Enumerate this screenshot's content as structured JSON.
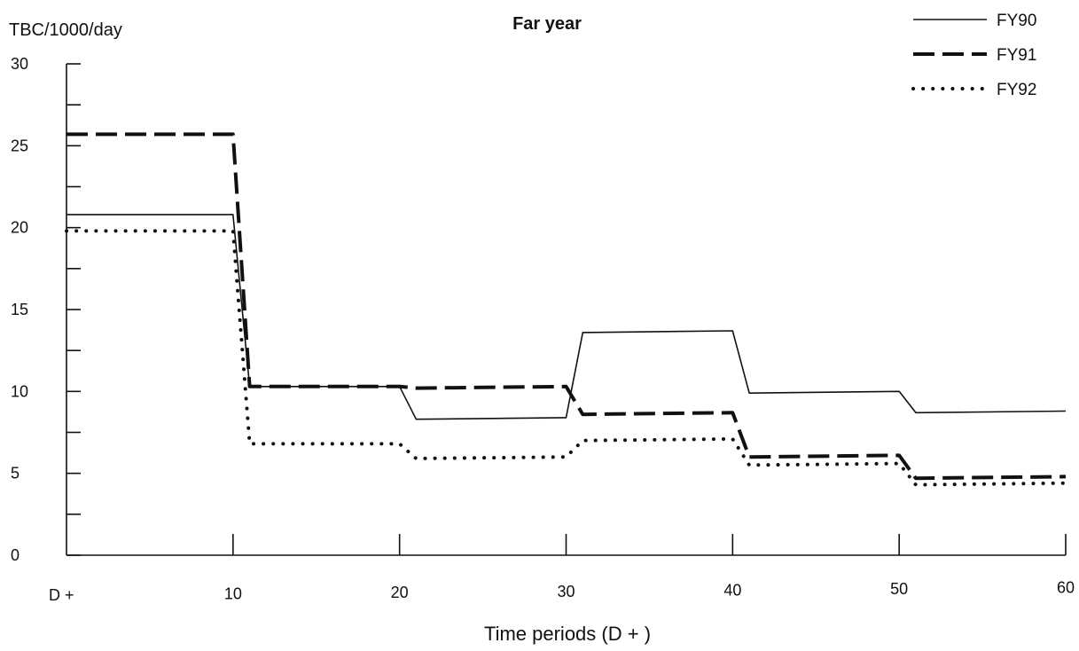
{
  "chart_data": {
    "type": "line",
    "title": "Far year",
    "ylabel": "TBC/1000/day",
    "xlabel": "Time periods (D + )",
    "x_tick_labels": [
      "D +",
      "10",
      "20",
      "30",
      "40",
      "50",
      "60"
    ],
    "x_tick_values": [
      0,
      10,
      20,
      30,
      40,
      50,
      60
    ],
    "y_tick_labels": [
      "0",
      "5",
      "10",
      "15",
      "20",
      "25",
      "30"
    ],
    "y_tick_values": [
      0,
      5,
      10,
      15,
      20,
      25,
      30
    ],
    "xlim": [
      0,
      60
    ],
    "ylim": [
      0,
      30
    ],
    "grid": false,
    "legend_position": "top-right",
    "series": [
      {
        "name": "FY90",
        "style": "solid",
        "color": "#111111",
        "points": [
          [
            0,
            20.8
          ],
          [
            10,
            20.8
          ],
          [
            11,
            10.3
          ],
          [
            20,
            10.3
          ],
          [
            21,
            8.3
          ],
          [
            30,
            8.4
          ],
          [
            31,
            13.6
          ],
          [
            40,
            13.7
          ],
          [
            41,
            9.9
          ],
          [
            50,
            10.0
          ],
          [
            51,
            8.7
          ],
          [
            60,
            8.8
          ]
        ]
      },
      {
        "name": "FY91",
        "style": "dashed",
        "color": "#111111",
        "points": [
          [
            0,
            25.7
          ],
          [
            10,
            25.7
          ],
          [
            11,
            10.3
          ],
          [
            20,
            10.3
          ],
          [
            21,
            10.2
          ],
          [
            30,
            10.3
          ],
          [
            31,
            8.6
          ],
          [
            40,
            8.7
          ],
          [
            41,
            6.0
          ],
          [
            50,
            6.1
          ],
          [
            51,
            4.7
          ],
          [
            60,
            4.8
          ]
        ]
      },
      {
        "name": "FY92",
        "style": "dotted",
        "color": "#111111",
        "points": [
          [
            0,
            19.8
          ],
          [
            10,
            19.8
          ],
          [
            11,
            6.8
          ],
          [
            20,
            6.8
          ],
          [
            21,
            5.9
          ],
          [
            30,
            6.0
          ],
          [
            31,
            7.0
          ],
          [
            40,
            7.1
          ],
          [
            41,
            5.5
          ],
          [
            50,
            5.6
          ],
          [
            51,
            4.3
          ],
          [
            60,
            4.4
          ]
        ]
      }
    ]
  }
}
